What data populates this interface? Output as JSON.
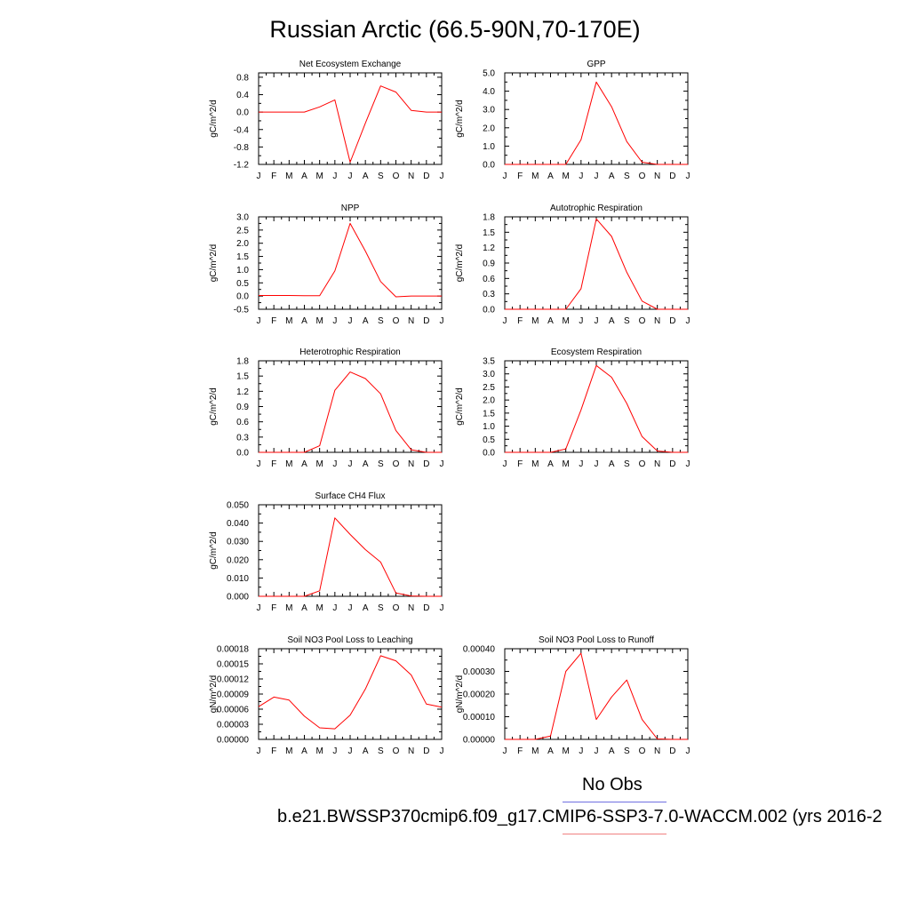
{
  "page": {
    "title": "Russian Arctic (66.5-90N,70-170E)",
    "legend": [
      {
        "label": "No Obs",
        "color": "#6f6fe0"
      },
      {
        "label": "b.e21.BWSSP370cmip6.f09_g17.CMIP6-SSP3-7.0-WACCM.002 (yrs 2016-2",
        "color": "#f08080"
      }
    ]
  },
  "chart_data": [
    {
      "type": "line",
      "title": "Net Ecosystem Exchange",
      "ylabel": "gC/m^2/d",
      "x": [
        "J",
        "F",
        "M",
        "A",
        "M",
        "J",
        "J",
        "A",
        "S",
        "O",
        "N",
        "D",
        "J"
      ],
      "ylim": [
        -1.2,
        0.9
      ],
      "yticks": [
        -1.2,
        -0.8,
        -0.4,
        0.0,
        0.4,
        0.8
      ],
      "yticklabels": [
        "-1.2",
        "-0.8",
        "-0.4",
        "0.0",
        "0.4",
        "0.8"
      ],
      "series": [
        {
          "color": "#ff0000",
          "values": [
            0.0,
            0.0,
            0.0,
            0.0,
            0.12,
            0.28,
            -1.15,
            -0.25,
            0.6,
            0.46,
            0.04,
            0.0,
            0.0
          ]
        }
      ]
    },
    {
      "type": "line",
      "title": "GPP",
      "ylabel": "gC/m^2/d",
      "x": [
        "J",
        "F",
        "M",
        "A",
        "M",
        "J",
        "J",
        "A",
        "S",
        "O",
        "N",
        "D",
        "J"
      ],
      "ylim": [
        0.0,
        5.0
      ],
      "yticks": [
        0.0,
        1.0,
        2.0,
        3.0,
        4.0,
        5.0
      ],
      "yticklabels": [
        "0.0",
        "1.0",
        "2.0",
        "3.0",
        "4.0",
        "5.0"
      ],
      "series": [
        {
          "color": "#ff0000",
          "values": [
            0.0,
            0.0,
            0.0,
            0.0,
            0.0,
            1.35,
            4.5,
            3.15,
            1.25,
            0.12,
            0.0,
            0.0,
            0.0
          ]
        }
      ]
    },
    {
      "type": "line",
      "title": "NPP",
      "ylabel": "gC/m^2/d",
      "x": [
        "J",
        "F",
        "M",
        "A",
        "M",
        "J",
        "J",
        "A",
        "S",
        "O",
        "N",
        "D",
        "J"
      ],
      "ylim": [
        -0.5,
        3.0
      ],
      "yticks": [
        -0.5,
        0.0,
        0.5,
        1.0,
        1.5,
        2.0,
        2.5,
        3.0
      ],
      "yticklabels": [
        "-0.5",
        "0.0",
        "0.5",
        "1.0",
        "1.5",
        "2.0",
        "2.5",
        "3.0"
      ],
      "series": [
        {
          "color": "#ff0000",
          "values": [
            0.02,
            0.02,
            0.02,
            0.01,
            0.01,
            0.95,
            2.75,
            1.7,
            0.55,
            -0.03,
            0.0,
            0.0,
            0.0
          ]
        }
      ]
    },
    {
      "type": "line",
      "title": "Autotrophic Respiration",
      "ylabel": "gC/m^2/d",
      "x": [
        "J",
        "F",
        "M",
        "A",
        "M",
        "J",
        "J",
        "A",
        "S",
        "O",
        "N",
        "D",
        "J"
      ],
      "ylim": [
        0.0,
        1.8
      ],
      "yticks": [
        0.0,
        0.3,
        0.6,
        0.9,
        1.2,
        1.5,
        1.8
      ],
      "yticklabels": [
        "0.0",
        "0.3",
        "0.6",
        "0.9",
        "1.2",
        "1.5",
        "1.8"
      ],
      "series": [
        {
          "color": "#ff0000",
          "values": [
            0.0,
            0.0,
            0.0,
            0.0,
            0.0,
            0.4,
            1.76,
            1.42,
            0.72,
            0.16,
            0.0,
            0.0,
            0.0
          ]
        }
      ]
    },
    {
      "type": "line",
      "title": "Heterotrophic Respiration",
      "ylabel": "gC/m^2/d",
      "x": [
        "J",
        "F",
        "M",
        "A",
        "M",
        "J",
        "J",
        "A",
        "S",
        "O",
        "N",
        "D",
        "J"
      ],
      "ylim": [
        0.0,
        1.8
      ],
      "yticks": [
        0.0,
        0.3,
        0.6,
        0.9,
        1.2,
        1.5,
        1.8
      ],
      "yticklabels": [
        "0.0",
        "0.3",
        "0.6",
        "0.9",
        "1.2",
        "1.5",
        "1.8"
      ],
      "series": [
        {
          "color": "#ff0000",
          "values": [
            0.0,
            0.0,
            0.0,
            0.0,
            0.13,
            1.22,
            1.58,
            1.45,
            1.15,
            0.43,
            0.05,
            0.0,
            0.0
          ]
        }
      ]
    },
    {
      "type": "line",
      "title": "Ecosystem Respiration",
      "ylabel": "gC/m^2/d",
      "x": [
        "J",
        "F",
        "M",
        "A",
        "M",
        "J",
        "J",
        "A",
        "S",
        "O",
        "N",
        "D",
        "J"
      ],
      "ylim": [
        0.0,
        3.5
      ],
      "yticks": [
        0.0,
        0.5,
        1.0,
        1.5,
        2.0,
        2.5,
        3.0,
        3.5
      ],
      "yticklabels": [
        "0.0",
        "0.5",
        "1.0",
        "1.5",
        "2.0",
        "2.5",
        "3.0",
        "3.5"
      ],
      "series": [
        {
          "color": "#ff0000",
          "values": [
            0.0,
            0.0,
            0.0,
            0.0,
            0.13,
            1.62,
            3.32,
            2.87,
            1.87,
            0.6,
            0.05,
            0.0,
            0.0
          ]
        }
      ]
    },
    {
      "type": "line",
      "title": "Surface CH4 Flux",
      "ylabel": "gC/m^2/d",
      "x": [
        "J",
        "F",
        "M",
        "A",
        "M",
        "J",
        "J",
        "A",
        "S",
        "O",
        "N",
        "D",
        "J"
      ],
      "ylim": [
        0.0,
        0.05
      ],
      "yticks": [
        0.0,
        0.01,
        0.02,
        0.03,
        0.04,
        0.05
      ],
      "yticklabels": [
        "0.000",
        "0.010",
        "0.020",
        "0.030",
        "0.040",
        "0.050"
      ],
      "series": [
        {
          "color": "#ff0000",
          "values": [
            0.0,
            0.0,
            0.0,
            0.0,
            0.003,
            0.0428,
            0.0338,
            0.0255,
            0.0187,
            0.0018,
            0.0002,
            0.0,
            0.0
          ]
        }
      ]
    },
    {
      "type": "line",
      "title": "Soil NO3 Pool Loss to Leaching",
      "ylabel": "gN/m^2/d",
      "x": [
        "J",
        "F",
        "M",
        "A",
        "M",
        "J",
        "J",
        "A",
        "S",
        "O",
        "N",
        "D",
        "J"
      ],
      "ylim": [
        0.0,
        0.00018
      ],
      "yticks": [
        0.0,
        3e-05,
        6e-05,
        9e-05,
        0.00012,
        0.00015,
        0.00018
      ],
      "yticklabels": [
        "0.00000",
        "0.00003",
        "0.00006",
        "0.00009",
        "0.00012",
        "0.00015",
        "0.00018"
      ],
      "series": [
        {
          "color": "#ff0000",
          "values": [
            6.5e-05,
            8.4e-05,
            7.8e-05,
            4.6e-05,
            2.3e-05,
            2.1e-05,
            4.8e-05,
            0.0001,
            0.000166,
            0.000156,
            0.000128,
            7e-05,
            6.4e-05
          ]
        }
      ]
    },
    {
      "type": "line",
      "title": "Soil NO3 Pool Loss to Runoff",
      "ylabel": "gN/m^2/d",
      "x": [
        "J",
        "F",
        "M",
        "A",
        "M",
        "J",
        "J",
        "A",
        "S",
        "O",
        "N",
        "D",
        "J"
      ],
      "ylim": [
        0.0,
        0.0004
      ],
      "yticks": [
        0.0,
        0.0001,
        0.0002,
        0.0003,
        0.0004
      ],
      "yticklabels": [
        "0.00000",
        "0.00010",
        "0.00020",
        "0.00030",
        "0.00040"
      ],
      "series": [
        {
          "color": "#ff0000",
          "values": [
            0.0,
            0.0,
            0.0,
            1.5e-05,
            0.0003,
            0.00038,
            8.8e-05,
            0.000187,
            0.000262,
            8.8e-05,
            2e-06,
            0.0,
            0.0
          ]
        }
      ]
    }
  ]
}
